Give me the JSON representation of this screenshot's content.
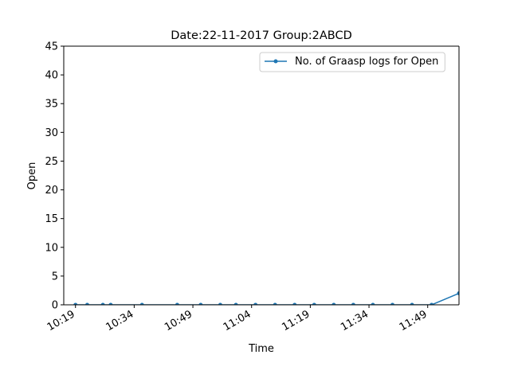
{
  "chart_data": {
    "type": "line",
    "title": "Date:22-11-2017  Group:2ABCD",
    "xlabel": "Time",
    "ylabel": "Open",
    "xlim": [
      "10:16",
      "11:57"
    ],
    "ylim": [
      0,
      45
    ],
    "yticks": [
      0,
      5,
      10,
      15,
      20,
      25,
      30,
      35,
      40,
      45
    ],
    "xticks": [
      "10:19",
      "10:34",
      "10:49",
      "11:04",
      "11:19",
      "11:34",
      "11:49"
    ],
    "grid": false,
    "legend_position": "top-right",
    "series": [
      {
        "name": "No. of Graasp logs for Open",
        "color": "#1f77b4",
        "x": [
          "10:19",
          "10:22",
          "10:26",
          "10:28",
          "10:36",
          "10:45",
          "10:51",
          "10:56",
          "11:00",
          "11:05",
          "11:10",
          "11:15",
          "11:20",
          "11:25",
          "11:30",
          "11:35",
          "11:40",
          "11:45",
          "11:50",
          "11:57"
        ],
        "y": [
          0,
          0,
          0,
          0,
          0,
          0,
          0,
          0,
          0,
          0,
          0,
          0,
          0,
          0,
          0,
          0,
          0,
          0,
          0,
          2
        ]
      }
    ]
  }
}
